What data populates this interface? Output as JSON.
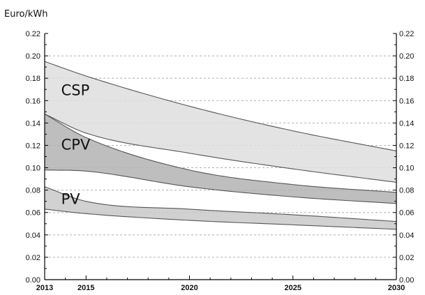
{
  "chart_data": {
    "type": "area",
    "title": "",
    "xlabel": "",
    "ylabel": "Euro/kWh",
    "x": [
      2013,
      2015,
      2020,
      2025,
      2030
    ],
    "xlim": [
      2013,
      2030
    ],
    "ylim": [
      0,
      0.22
    ],
    "x_ticks": [
      "2013",
      "2015",
      "2020",
      "2025",
      "2030"
    ],
    "y_ticks": [
      "0.00",
      "0.02",
      "0.04",
      "0.06",
      "0.08",
      "0.10",
      "0.12",
      "0.14",
      "0.16",
      "0.18",
      "0.20",
      "0.22"
    ],
    "y_axis_mirrored_right": true,
    "grid": "horizontal dashed",
    "legend": "none",
    "series": [
      {
        "name": "CSP",
        "low": [
          0.148,
          0.131,
          0.113,
          0.099,
          0.087
        ],
        "high": [
          0.195,
          0.182,
          0.155,
          0.133,
          0.115
        ]
      },
      {
        "name": "CPV",
        "low": [
          0.098,
          0.097,
          0.083,
          0.074,
          0.068
        ],
        "high": [
          0.148,
          0.127,
          0.098,
          0.085,
          0.078
        ]
      },
      {
        "name": "PV",
        "low": [
          0.063,
          0.059,
          0.053,
          0.049,
          0.045
        ],
        "high": [
          0.083,
          0.07,
          0.063,
          0.058,
          0.052
        ]
      }
    ],
    "colors": {
      "band": "#c9c9c9",
      "band_light": "#dedede",
      "band_dark": "#b3b3b3",
      "edge": "#555555",
      "grid": "#b0b0b0",
      "axis": "#000000"
    }
  }
}
